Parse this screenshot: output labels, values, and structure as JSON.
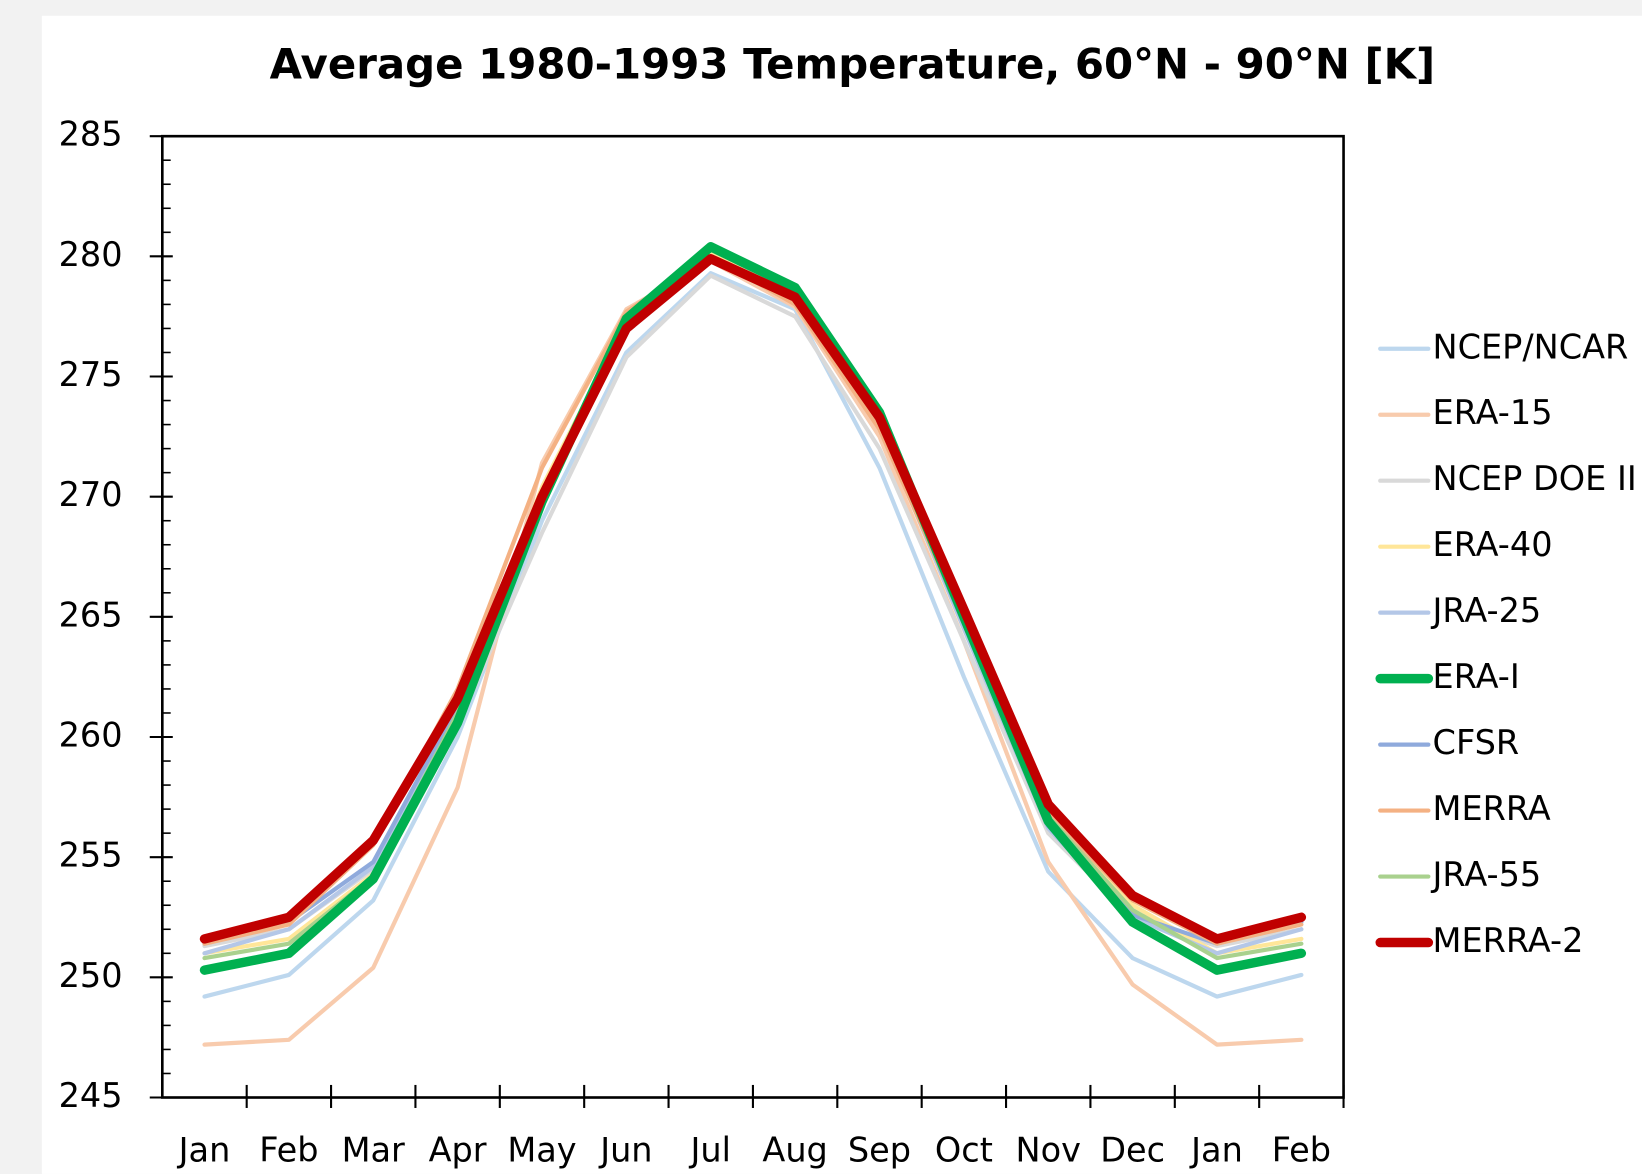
{
  "chart_data": {
    "type": "line",
    "title": "Average 1980-1993 Temperature, 60°N - 90°N [K]",
    "categories": [
      "Jan",
      "Feb",
      "Mar",
      "Apr",
      "May",
      "Jun",
      "Jul",
      "Aug",
      "Sep",
      "Oct",
      "Nov",
      "Dec",
      "Jan",
      "Feb"
    ],
    "ylim": [
      245,
      285
    ],
    "yticks": [
      245,
      250,
      255,
      260,
      265,
      270,
      275,
      280,
      285
    ],
    "legend": "right",
    "series": [
      {
        "name": "NCEP/NCAR",
        "color": "#bdd7ee",
        "line_width": 4,
        "values": [
          249.2,
          250.1,
          253.2,
          260,
          269,
          276,
          279.3,
          277.8,
          271.2,
          262.5,
          254.4,
          250.8,
          249.2,
          250.1
        ]
      },
      {
        "name": "ERA-15",
        "color": "#f8cbad",
        "line_width": 4,
        "values": [
          247.2,
          247.4,
          250.4,
          257.9,
          271.4,
          277.8,
          279.8,
          277.9,
          272.5,
          264,
          254.8,
          249.7,
          247.2,
          247.4
        ]
      },
      {
        "name": "NCEP DOE II",
        "color": "#d9d9d9",
        "line_width": 4,
        "values": [
          251.3,
          252,
          254.5,
          260.5,
          268.5,
          275.8,
          279.2,
          277.5,
          272,
          264,
          256,
          252.5,
          251.3,
          252
        ]
      },
      {
        "name": "ERA-40",
        "color": "#ffe699",
        "line_width": 4,
        "values": [
          251,
          251.6,
          254.3,
          261.2,
          270.4,
          277.3,
          280.2,
          278.5,
          273,
          264.5,
          256.5,
          253,
          251,
          251.6
        ]
      },
      {
        "name": "JRA-25",
        "color": "#b4c7e7",
        "line_width": 4,
        "values": [
          251,
          252,
          254.6,
          261.2,
          270.1,
          277,
          280,
          278.3,
          273,
          264.5,
          256.2,
          252.5,
          251,
          252
        ]
      },
      {
        "name": "ERA-I",
        "color": "#00b050",
        "line_width": 9,
        "values": [
          250.3,
          251,
          254.1,
          260.6,
          269.8,
          277.4,
          280.4,
          278.7,
          273.5,
          265,
          256.5,
          252.3,
          250.3,
          251
        ]
      },
      {
        "name": "CFSR",
        "color": "#8faadc",
        "line_width": 4,
        "values": [
          251.4,
          252.3,
          254.8,
          261.3,
          270,
          277,
          279.8,
          278.2,
          273,
          264.7,
          256.3,
          252.6,
          251.4,
          252.3
        ]
      },
      {
        "name": "MERRA",
        "color": "#f4b183",
        "line_width": 4,
        "values": [
          251.4,
          252.2,
          255.5,
          262,
          271.2,
          277.7,
          280,
          278,
          272.8,
          264.8,
          256.8,
          253.2,
          251.4,
          252.2
        ]
      },
      {
        "name": "JRA-55",
        "color": "#a9d18e",
        "line_width": 4,
        "values": [
          250.8,
          251.4,
          254.2,
          261,
          270.2,
          277.4,
          280.3,
          278.5,
          273.2,
          264.8,
          256.7,
          252.8,
          250.8,
          251.4
        ]
      },
      {
        "name": "MERRA-2",
        "color": "#c00000",
        "line_width": 9,
        "values": [
          251.6,
          252.5,
          255.7,
          261.6,
          270,
          277,
          279.9,
          278.3,
          273.3,
          265.3,
          257.2,
          253.4,
          251.6,
          252.5
        ]
      }
    ]
  }
}
